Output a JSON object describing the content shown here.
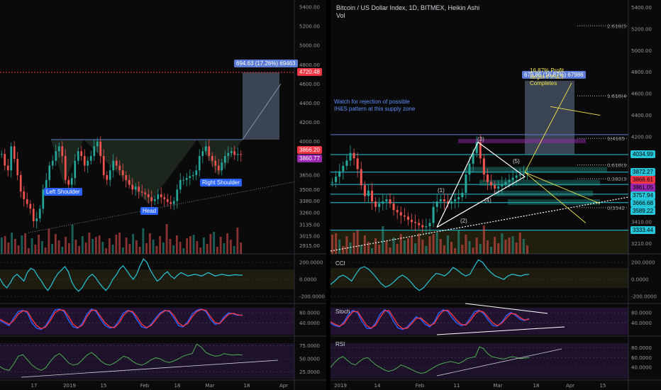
{
  "chart_data": [
    {
      "type": "candlestick",
      "panel": "left",
      "title": "",
      "x_tick_labels": [
        "17",
        "2019",
        "15",
        "Feb",
        "18",
        "Mar",
        "18",
        "Apr"
      ],
      "y_tick_labels": [
        "5400.00",
        "5200.00",
        "5000.00",
        "4800.00",
        "4600.00",
        "4400.00",
        "4200.00",
        "4000.00",
        "3800.00",
        "3650.00",
        "3500.00",
        "3380.00",
        "3260.00",
        "3135.00",
        "3015.00",
        "2915.00"
      ],
      "ylim": [
        2860,
        5430
      ],
      "price_tags": [
        {
          "text": "4720.48",
          "color": "#f23645"
        },
        {
          "text": "3866.20",
          "color": "#f23645"
        },
        {
          "text": "3860.77",
          "color": "#9c27b0"
        }
      ],
      "projection_label": "694.63 (17.26%) 69463",
      "annotations": [
        "Left Shoulder",
        "Head",
        "Right Shoulder"
      ],
      "closes": [
        3870,
        3750,
        3700,
        3950,
        3820,
        3650,
        3480,
        3400,
        3350,
        3300,
        3170,
        3200,
        3300,
        3500,
        3600,
        3750,
        3800,
        3900,
        3950,
        3850,
        3600,
        3550,
        3620,
        3800,
        3900,
        3850,
        3750,
        3800,
        3850,
        3950,
        4000,
        3850,
        3650,
        3600,
        3700,
        3800,
        3750,
        3700,
        3650,
        3600,
        3550,
        3500,
        3530,
        3480,
        3470,
        3450,
        3420,
        3380,
        3400,
        3450,
        3420,
        3400,
        3370,
        3350,
        3380,
        3500,
        3600,
        3600,
        3620,
        3640,
        3650,
        3700,
        3850,
        3900,
        3950,
        3850,
        3800,
        3750,
        3700,
        3780,
        3850,
        3880,
        3900,
        3860,
        3870,
        3866
      ]
    },
    {
      "type": "line",
      "panel": "left",
      "indicator": "CCI",
      "y_tick_labels": [
        "200.0000",
        "0.0000",
        "-200.0000"
      ],
      "ylim": [
        -250,
        250
      ],
      "values": [
        10,
        -60,
        -100,
        -40,
        30,
        60,
        20,
        -20,
        80,
        130,
        110,
        40,
        -10,
        -80,
        -130,
        -70,
        10,
        70,
        110,
        150,
        90,
        -30,
        -100,
        -140,
        -100,
        -30,
        30,
        60,
        20,
        -40,
        -90,
        -130,
        -80,
        0,
        50,
        120,
        160,
        110,
        50,
        0,
        60,
        160,
        240,
        200,
        110,
        40,
        -20,
        10,
        60,
        90,
        40,
        10,
        50,
        80,
        60,
        40,
        50,
        60,
        50,
        40,
        60,
        80,
        60,
        40,
        50,
        60,
        50,
        45,
        50,
        55,
        50,
        50
      ]
    },
    {
      "type": "line",
      "panel": "left",
      "indicator": "Stoch",
      "y_tick_labels": [
        "80.0000",
        "40.0000"
      ],
      "ylim": [
        0,
        100
      ],
      "series": [
        {
          "color": "#2962ff",
          "values": [
            50,
            40,
            30,
            60,
            85,
            90,
            80,
            40,
            20,
            15,
            30,
            60,
            90,
            95,
            85,
            50,
            25,
            20,
            40,
            75,
            95,
            85,
            55,
            30,
            20,
            25,
            50,
            80,
            90,
            80,
            50,
            25,
            20,
            35,
            60,
            80,
            90,
            85,
            60,
            30,
            25,
            45,
            75,
            90,
            95,
            85,
            55,
            35,
            40,
            65,
            80,
            75,
            70,
            72
          ]
        },
        {
          "color": "#f23645",
          "values": [
            55,
            45,
            35,
            50,
            75,
            88,
            85,
            55,
            30,
            18,
            25,
            50,
            80,
            92,
            90,
            65,
            35,
            22,
            32,
            65,
            90,
            90,
            65,
            40,
            25,
            22,
            40,
            70,
            88,
            85,
            62,
            35,
            22,
            30,
            52,
            75,
            88,
            88,
            70,
            40,
            28,
            38,
            65,
            85,
            93,
            90,
            65,
            42,
            38,
            58,
            75,
            78,
            72,
            70
          ]
        }
      ]
    },
    {
      "type": "line",
      "panel": "left",
      "indicator": "RSI",
      "y_tick_labels": [
        "75.0000",
        "50.0000",
        "25.0000"
      ],
      "ylim": [
        15,
        85
      ],
      "values": [
        35,
        30,
        28,
        40,
        55,
        58,
        48,
        38,
        32,
        28,
        33,
        45,
        55,
        60,
        52,
        42,
        38,
        40,
        48,
        57,
        62,
        55,
        46,
        40,
        38,
        42,
        48,
        55,
        52,
        45,
        40,
        38,
        42,
        48,
        52,
        50,
        45,
        43,
        46,
        50,
        55,
        58,
        60,
        78,
        72,
        62,
        58,
        55,
        56,
        60,
        58,
        57,
        58,
        57
      ]
    },
    {
      "type": "candlestick",
      "panel": "right",
      "title": "Bitcoin / US Dollar Index, 1D, BITMEX, Heikin Ashi",
      "subtitle": "Vol",
      "x_tick_labels": [
        "2019",
        "14",
        "Feb",
        "11",
        "Mar",
        "18",
        "Apr",
        "15"
      ],
      "y_tick_labels": [
        "5400.00",
        "5200.00",
        "5000.00",
        "4800.00",
        "4600.00",
        "4400.00",
        "4200.00",
        "3410.00",
        "3210.00"
      ],
      "ylim": [
        3140,
        5430
      ],
      "price_tags": [
        {
          "text": "4034.99",
          "color": "#26c6da"
        },
        {
          "text": "3872.27",
          "color": "#26c6da"
        },
        {
          "text": "3866.61",
          "color": "#f23645"
        },
        {
          "text": "3861.05",
          "color": "#9c27b0"
        },
        {
          "text": "3757.94",
          "color": "#26c6da"
        },
        {
          "text": "3666.68",
          "color": "#26c6da"
        },
        {
          "text": "3589.22",
          "color": "#26c6da"
        },
        {
          "text": "3333.44",
          "color": "#26c6da"
        }
      ],
      "fib_levels": [
        "2.618(5",
        "1.618(4",
        "1(4185",
        "0.618(3",
        "0.382(3",
        "0(3542"
      ],
      "projection_label": "679.86 (16.87%) 67986",
      "annotations": [
        "Watch for rejection of possible",
        "IH&S pattern at this supply zone",
        "16.87% Profit",
        "target if IH&S",
        "Completes",
        "(1)",
        "(2)",
        "(3)",
        "(4)",
        "(5)"
      ],
      "closes": [
        3780,
        3830,
        3880,
        3930,
        3980,
        4050,
        4000,
        3900,
        3750,
        3650,
        3700,
        3600,
        3550,
        3580,
        3600,
        3620,
        3580,
        3520,
        3500,
        3470,
        3460,
        3430,
        3410,
        3400,
        3380,
        3360,
        3370,
        3400,
        3550,
        3600,
        3620,
        3600,
        3580,
        3600,
        3620,
        3640,
        3680,
        3850,
        3950,
        4050,
        4150,
        4000,
        3850,
        3780,
        3750,
        3720,
        3740,
        3760,
        3780,
        3800,
        3820,
        3840,
        3850,
        3860,
        3866
      ]
    },
    {
      "type": "line",
      "panel": "right",
      "indicator": "CCI",
      "y_tick_labels": [
        "200.0000",
        "0.0000",
        "-200.0000"
      ],
      "ylim": [
        -250,
        250
      ],
      "values": [
        -60,
        -20,
        30,
        50,
        20,
        -20,
        60,
        130,
        150,
        120,
        70,
        10,
        -50,
        -90,
        -70,
        -30,
        20,
        50,
        20,
        -30,
        -90,
        -130,
        -100,
        -40,
        20,
        70,
        60,
        40,
        80,
        140,
        110,
        70,
        40,
        60,
        150,
        230,
        200,
        130,
        80,
        40,
        20,
        0,
        40,
        60,
        50,
        40,
        55,
        60
      ]
    },
    {
      "type": "line",
      "panel": "right",
      "indicator": "Stoch",
      "y_tick_labels": [
        "80.0000",
        "40.0000"
      ],
      "ylim": [
        0,
        100
      ],
      "series": [
        {
          "color": "#2962ff",
          "values": [
            40,
            30,
            25,
            45,
            75,
            90,
            80,
            45,
            20,
            18,
            40,
            75,
            92,
            80,
            45,
            20,
            15,
            25,
            45,
            65,
            55,
            35,
            25,
            45,
            80,
            92,
            85,
            60,
            40,
            30,
            35,
            60,
            85,
            90,
            75,
            50,
            30,
            28,
            45,
            70,
            82,
            70,
            55,
            50,
            58
          ]
        },
        {
          "color": "#f23645",
          "values": [
            45,
            35,
            28,
            38,
            65,
            85,
            85,
            58,
            30,
            20,
            32,
            62,
            88,
            88,
            60,
            32,
            18,
            20,
            38,
            58,
            60,
            45,
            30,
            38,
            68,
            88,
            90,
            72,
            50,
            35,
            32,
            50,
            75,
            88,
            82,
            60,
            40,
            30,
            40,
            60,
            78,
            75,
            62,
            52,
            55
          ]
        }
      ]
    },
    {
      "type": "line",
      "panel": "right",
      "indicator": "RSI",
      "y_tick_labels": [
        "80.0000",
        "60.0000",
        "40.0000"
      ],
      "ylim": [
        20,
        95
      ],
      "values": [
        40,
        50,
        58,
        62,
        55,
        48,
        45,
        52,
        58,
        60,
        52,
        45,
        40,
        35,
        32,
        34,
        38,
        45,
        42,
        38,
        34,
        30,
        28,
        30,
        35,
        40,
        45,
        48,
        50,
        52,
        50,
        48,
        52,
        58,
        60,
        62,
        82,
        78,
        68,
        62,
        60,
        58,
        57,
        60,
        62,
        60,
        58,
        59,
        60
      ]
    }
  ]
}
